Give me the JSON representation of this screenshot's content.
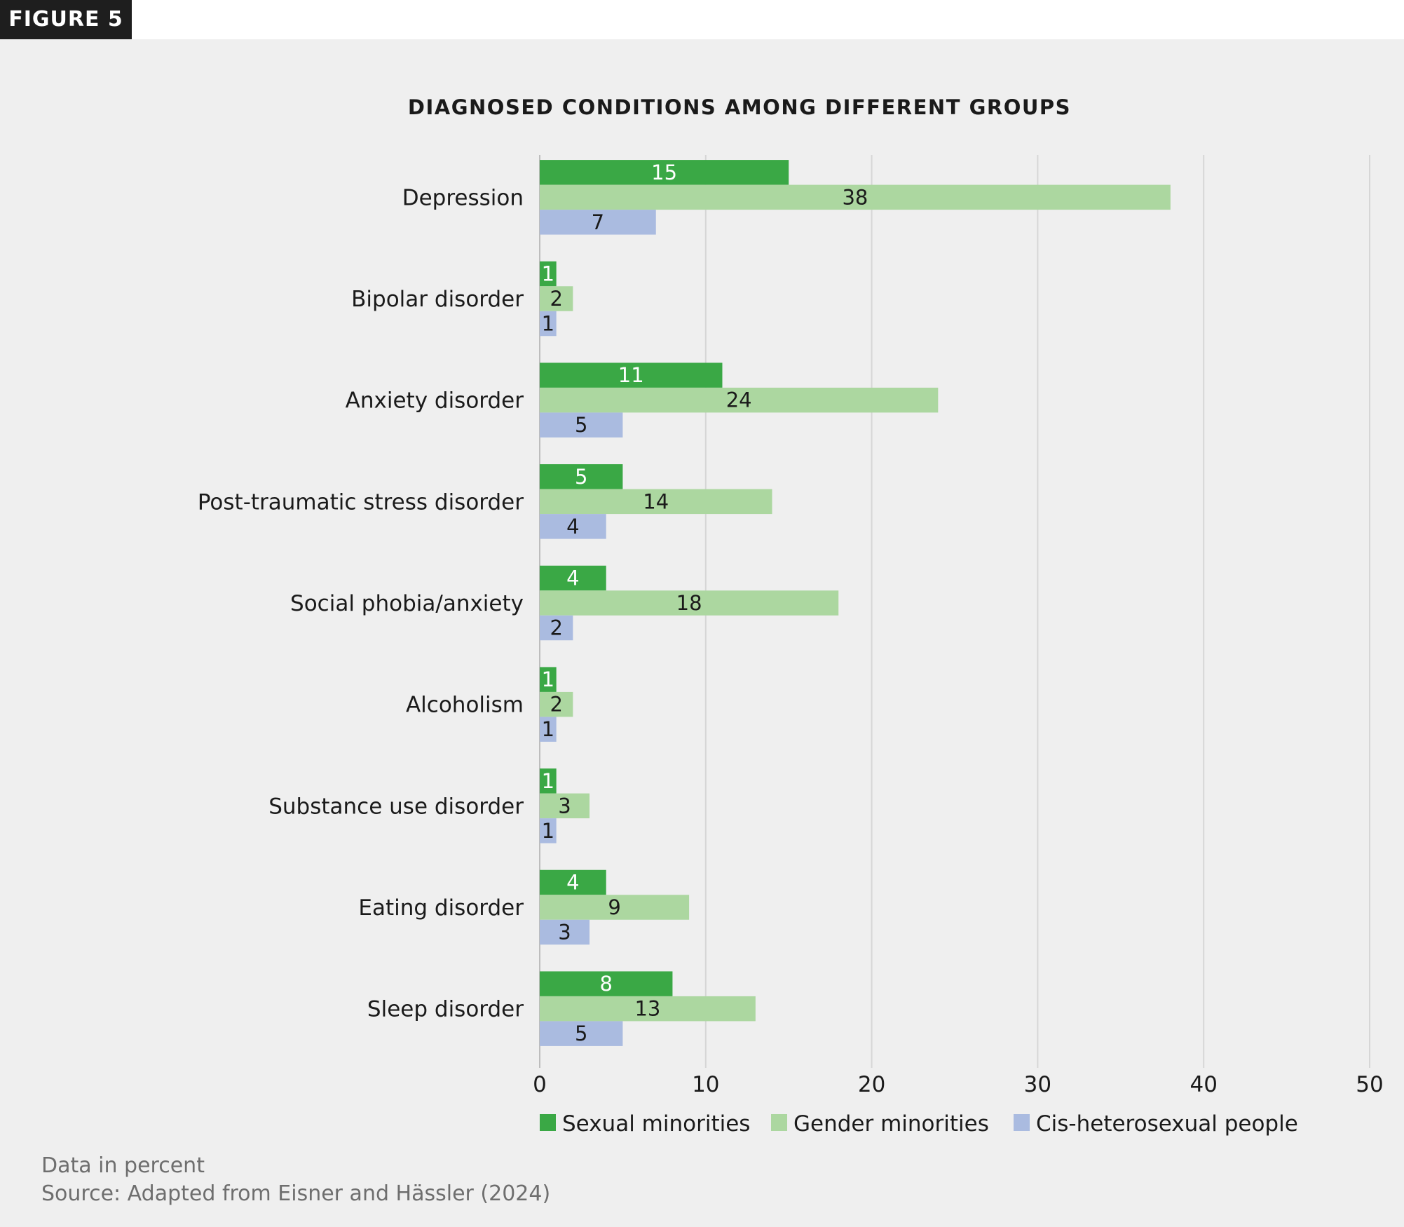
{
  "badge": "FIGURE 5",
  "footer": {
    "note": "Data in percent",
    "source": "Source: Adapted from Eisner and Hässler (2024)"
  },
  "chart_data": {
    "type": "bar",
    "orientation": "horizontal",
    "title": "DIAGNOSED CONDITIONS AMONG DIFFERENT GROUPS",
    "xlabel": "",
    "ylabel": "",
    "xlim": [
      0,
      50
    ],
    "xticks": [
      "0",
      "10",
      "20",
      "30",
      "40",
      "50"
    ],
    "grid": true,
    "legend_position": "bottom",
    "categories": [
      "Depression",
      "Bipolar disorder",
      "Anxiety disorder",
      "Post-traumatic stress disorder",
      "Social phobia/anxiety",
      "Alcoholism",
      "Substance use disorder",
      "Eating disorder",
      "Sleep disorder"
    ],
    "series": [
      {
        "name": "Sexual minorities",
        "color": "#3aa845",
        "label_color": "#ffffff",
        "values": [
          15,
          1,
          11,
          5,
          4,
          1,
          1,
          4,
          8
        ]
      },
      {
        "name": "Gender minorities",
        "color": "#acd7a0",
        "label_color": "#1a1a1a",
        "values": [
          38,
          2,
          24,
          14,
          18,
          2,
          3,
          9,
          13
        ]
      },
      {
        "name": "Cis-heterosexual people",
        "color": "#aabbe0",
        "label_color": "#1a1a1a",
        "values": [
          7,
          1,
          5,
          4,
          2,
          1,
          1,
          3,
          5
        ]
      }
    ]
  }
}
